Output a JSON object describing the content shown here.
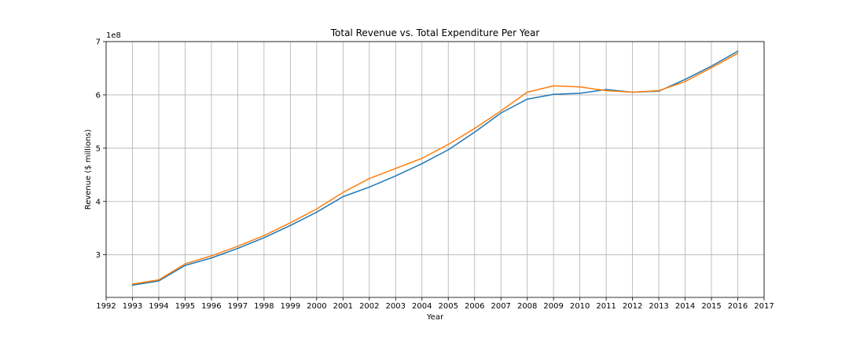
{
  "chart_data": {
    "type": "line",
    "title": "Total Revenue vs. Total Expenditure Per Year",
    "xlabel": "Year",
    "ylabel": "Revenue ($ millions)",
    "y_exponent_label": "1e8",
    "y_scale_factor": 100000000,
    "xlim": [
      1992,
      2017
    ],
    "ylim": [
      220000000,
      700000000
    ],
    "x_ticks": [
      1992,
      1993,
      1994,
      1995,
      1996,
      1997,
      1998,
      1999,
      2000,
      2001,
      2002,
      2003,
      2004,
      2005,
      2006,
      2007,
      2008,
      2009,
      2010,
      2011,
      2012,
      2013,
      2014,
      2015,
      2016,
      2017
    ],
    "x_tick_labels": [
      "1992",
      "1993",
      "1994",
      "1995",
      "1996",
      "1997",
      "1998",
      "1999",
      "2000",
      "2001",
      "2002",
      "2003",
      "2004",
      "2005",
      "2006",
      "2007",
      "2008",
      "2009",
      "2010",
      "2011",
      "2012",
      "2013",
      "2014",
      "2015",
      "2016",
      "2017"
    ],
    "y_ticks": [
      300000000,
      400000000,
      500000000,
      600000000,
      700000000
    ],
    "y_tick_labels": [
      "3",
      "4",
      "5",
      "6",
      "7"
    ],
    "grid": true,
    "legend": false,
    "x": [
      1993,
      1994,
      1995,
      1996,
      1997,
      1998,
      1999,
      2000,
      2001,
      2002,
      2003,
      2004,
      2005,
      2006,
      2007,
      2008,
      2009,
      2010,
      2011,
      2012,
      2013,
      2014,
      2015,
      2016
    ],
    "series": [
      {
        "color": "#1f77b4",
        "values": [
          243000000,
          251000000,
          280000000,
          294000000,
          312000000,
          332000000,
          355000000,
          380000000,
          409000000,
          427000000,
          448000000,
          471000000,
          497000000,
          530000000,
          566000000,
          592000000,
          601000000,
          603000000,
          610000000,
          605000000,
          607000000,
          629000000,
          654000000,
          682000000
        ]
      },
      {
        "color": "#ff7f0e",
        "values": [
          245000000,
          253000000,
          283000000,
          298000000,
          316000000,
          336000000,
          360000000,
          386000000,
          417000000,
          443000000,
          462000000,
          481000000,
          507000000,
          537000000,
          570000000,
          605000000,
          617000000,
          615000000,
          608000000,
          605000000,
          608000000,
          625000000,
          651000000,
          678000000
        ]
      }
    ]
  }
}
